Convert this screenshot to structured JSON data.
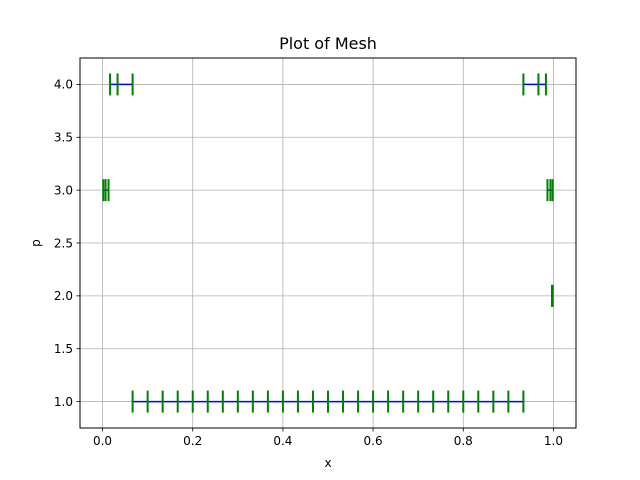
{
  "chart_data": {
    "type": "line",
    "title": "Plot of Mesh",
    "xlabel": "x",
    "ylabel": "p",
    "xlim": [
      -0.05,
      1.05
    ],
    "ylim": [
      0.75,
      4.25
    ],
    "xticks": [
      0.0,
      0.2,
      0.4,
      0.6,
      0.8,
      1.0
    ],
    "xtick_labels": [
      "0.0",
      "0.2",
      "0.4",
      "0.6",
      "0.8",
      "1.0"
    ],
    "yticks": [
      1.0,
      1.5,
      2.0,
      2.5,
      3.0,
      3.5,
      4.0
    ],
    "ytick_labels": [
      "1.0",
      "1.5",
      "2.0",
      "2.5",
      "3.0",
      "3.5",
      "4.0"
    ],
    "grid": true,
    "legend": "none",
    "colors": {
      "segment": "#0000ff",
      "node": "#008000",
      "grid": "#b0b0b0"
    },
    "series": [
      {
        "p": 1.0,
        "nodes": [
          0.0667,
          0.1,
          0.1333,
          0.1667,
          0.2,
          0.2333,
          0.2667,
          0.3,
          0.3333,
          0.3667,
          0.4,
          0.4333,
          0.4667,
          0.5,
          0.5333,
          0.5667,
          0.6,
          0.6333,
          0.6667,
          0.7,
          0.7333,
          0.7667,
          0.8,
          0.8333,
          0.8667,
          0.9,
          0.9333
        ]
      },
      {
        "p": 2.0,
        "nodes": [
          0.9967,
          0.9983
        ]
      },
      {
        "p": 3.0,
        "nodes": [
          0.0017,
          0.0067,
          0.0133
        ]
      },
      {
        "p": 3.0,
        "nodes": [
          0.9867,
          0.9933,
          0.9983
        ]
      },
      {
        "p": 4.0,
        "nodes": [
          0.0167,
          0.0333,
          0.0667
        ]
      },
      {
        "p": 4.0,
        "nodes": [
          0.9333,
          0.9667,
          0.9833
        ]
      }
    ]
  }
}
